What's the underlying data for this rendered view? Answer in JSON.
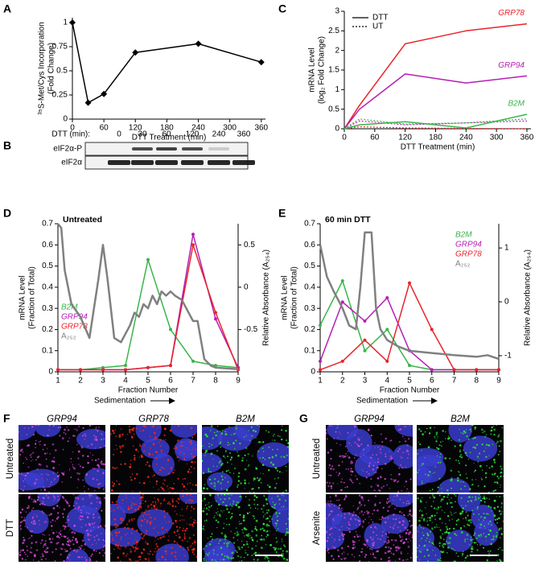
{
  "panel_labels": [
    "A",
    "B",
    "C",
    "D",
    "E",
    "F",
    "G"
  ],
  "chart_data": [
    {
      "type": "line",
      "ylabel": [
        "³⁵S-Met/Cys Incorporation",
        "(Fold Change)"
      ],
      "xlabel": "DTT Treatment (min)",
      "x": [
        0,
        30,
        60,
        120,
        240,
        360
      ],
      "xlim": [
        0,
        368
      ],
      "xticks": [
        0,
        60,
        120,
        180,
        240,
        300,
        360
      ],
      "ylim": [
        0,
        1.05
      ],
      "yticks": [
        0,
        0.25,
        0.5,
        0.75,
        1
      ],
      "series": [
        {
          "color": "#000000",
          "values": [
            1,
            0.17,
            0.26,
            0.69,
            0.78,
            0.59
          ]
        }
      ]
    },
    {
      "type": "line",
      "ylabel": [
        "mRNA Level",
        "(log₂ Fold Change)"
      ],
      "xlabel": "DTT Treatment (min)",
      "x": [
        0,
        30,
        120,
        240,
        360
      ],
      "xlim": [
        0,
        368
      ],
      "xticks": [
        0,
        60,
        120,
        180,
        240,
        300,
        360
      ],
      "ylim": [
        0,
        3
      ],
      "yticks": [
        0,
        0.5,
        1,
        1.5,
        2,
        2.5,
        3
      ],
      "legend": [
        {
          "label": "DTT",
          "dash": "solid"
        },
        {
          "label": "UT",
          "dash": "dotted"
        }
      ],
      "series": [
        {
          "name": "GRP78",
          "color": "#e8242b",
          "values": [
            0,
            0.6,
            2.17,
            2.5,
            2.68
          ],
          "untreated_values": [
            0,
            0.05,
            0.02,
            0.01,
            0
          ]
        },
        {
          "name": "GRP94",
          "color": "#b51fb5",
          "values": [
            0,
            0.5,
            1.4,
            1.17,
            1.35
          ],
          "untreated_values": [
            0,
            0.2,
            0.1,
            0.15,
            0.2
          ]
        },
        {
          "name": "B2M",
          "color": "#39b54a",
          "values": [
            0,
            0.1,
            0.18,
            0.02,
            0.37
          ],
          "untreated_values": [
            0,
            0.25,
            0.12,
            0.15,
            0.25
          ]
        }
      ]
    },
    {
      "type": "line",
      "title": "Untreated",
      "ylabel": [
        "mRNA Level",
        "(Fraction of Total)"
      ],
      "y2label": "Relative Absorbance (A₂₅₄)",
      "xlabel": "Fraction Number",
      "xnote": "Sedimentation",
      "x": [
        1,
        2,
        3,
        4,
        5,
        6,
        7,
        8,
        9
      ],
      "xlim": [
        1,
        9
      ],
      "xticks": [
        1,
        2,
        3,
        4,
        5,
        6,
        7,
        8,
        9
      ],
      "ylim": [
        0,
        0.7
      ],
      "yticks": [
        0,
        0.1,
        0.2,
        0.3,
        0.4,
        0.5,
        0.6,
        0.7
      ],
      "y2lim": [
        -1,
        0.75
      ],
      "y2ticks": [
        -0.5,
        0,
        0.5
      ],
      "series": [
        {
          "name": "B2M",
          "color": "#39b54a",
          "values": [
            0.01,
            0.01,
            0.02,
            0.03,
            0.53,
            0.2,
            0.05,
            0.03,
            0.02
          ]
        },
        {
          "name": "GRP94",
          "color": "#b51fb5",
          "values": [
            0.01,
            0.01,
            0.01,
            0.01,
            0.02,
            0.03,
            0.65,
            0.25,
            0.02
          ]
        },
        {
          "name": "GRP78",
          "color": "#e8242b",
          "values": [
            0.01,
            0.01,
            0.01,
            0.01,
            0.02,
            0.03,
            0.6,
            0.28,
            0.01
          ]
        },
        {
          "name": "A₂₅₂",
          "color": "#808080",
          "axis": "y2",
          "x": [
            1,
            1.15,
            1.3,
            1.6,
            2,
            2.4,
            2.8,
            3,
            3.2,
            3.5,
            3.8,
            4,
            4.2,
            4.4,
            4.6,
            4.8,
            5,
            5.2,
            5.4,
            5.6,
            5.8,
            6,
            6.2,
            6.5,
            6.8,
            7,
            7.2,
            7.5,
            7.8,
            8,
            8.5,
            9
          ],
          "values": [
            0.75,
            0.7,
            0.2,
            -0.2,
            -0.35,
            -0.6,
            0.1,
            0.5,
            0.1,
            -0.6,
            -0.65,
            -0.55,
            -0.45,
            -0.3,
            -0.35,
            -0.2,
            -0.25,
            -0.1,
            -0.2,
            -0.05,
            -0.1,
            -0.05,
            -0.1,
            -0.15,
            -0.3,
            -0.4,
            -0.4,
            -0.85,
            -0.93,
            -0.95,
            -0.96,
            -0.97
          ]
        }
      ]
    },
    {
      "type": "line",
      "title": "60 min DTT",
      "ylabel": [
        "mRNA Level",
        "(Fraction of Total)"
      ],
      "y2label": "Relative Absorbance (A₂₅₄)",
      "xlabel": "Fraction Number",
      "xnote": "Sedimentation",
      "x": [
        1,
        2,
        3,
        4,
        5,
        6,
        7,
        8,
        9
      ],
      "xlim": [
        1,
        9
      ],
      "xticks": [
        1,
        2,
        3,
        4,
        5,
        6,
        7,
        8,
        9
      ],
      "ylim": [
        0,
        0.7
      ],
      "yticks": [
        0,
        0.1,
        0.2,
        0.3,
        0.4,
        0.5,
        0.6,
        0.7
      ],
      "y2lim": [
        -1.3,
        1.45
      ],
      "y2ticks": [
        -1,
        0,
        1
      ],
      "series": [
        {
          "name": "B2M",
          "color": "#39b54a",
          "values": [
            0.22,
            0.43,
            0.1,
            0.2,
            0.03,
            0.01,
            0.01,
            0.01,
            0.01
          ]
        },
        {
          "name": "GRP94",
          "color": "#b51fb5",
          "values": [
            0.05,
            0.33,
            0.24,
            0.35,
            0.1,
            0.01,
            0.01,
            0.01,
            0.01
          ]
        },
        {
          "name": "GRP78",
          "color": "#e8242b",
          "values": [
            0.01,
            0.05,
            0.15,
            0.05,
            0.42,
            0.2,
            0.01,
            0.01,
            0.01
          ]
        },
        {
          "name": "A₂₅₂",
          "color": "#808080",
          "axis": "y2",
          "x": [
            1,
            1.3,
            1.6,
            2,
            2.3,
            2.6,
            2.8,
            3,
            3.3,
            3.5,
            3.7,
            4,
            4.5,
            5,
            6,
            7,
            8,
            8.5,
            9
          ],
          "values": [
            1.06,
            0.47,
            0.2,
            -0.12,
            -0.44,
            -0.51,
            0.27,
            1.29,
            1.29,
            -0.12,
            -0.51,
            -0.71,
            -0.83,
            -0.91,
            -0.95,
            -0.99,
            -1.02,
            -0.99,
            -1.06
          ]
        }
      ]
    }
  ],
  "blot": {
    "label": "DTT (min):",
    "lanes": [
      "0",
      "30",
      "60",
      "120",
      "240",
      "360"
    ],
    "rows": [
      "eIF2α-P",
      "eIF2α"
    ]
  },
  "micrographs": [
    {
      "columns": [
        "GRP94",
        "GRP78",
        "B2M"
      ],
      "rows": [
        "Untreated",
        "DTT"
      ]
    },
    {
      "columns": [
        "GRP94",
        "B2M"
      ],
      "rows": [
        "Untreated",
        "Arsenite"
      ]
    }
  ]
}
